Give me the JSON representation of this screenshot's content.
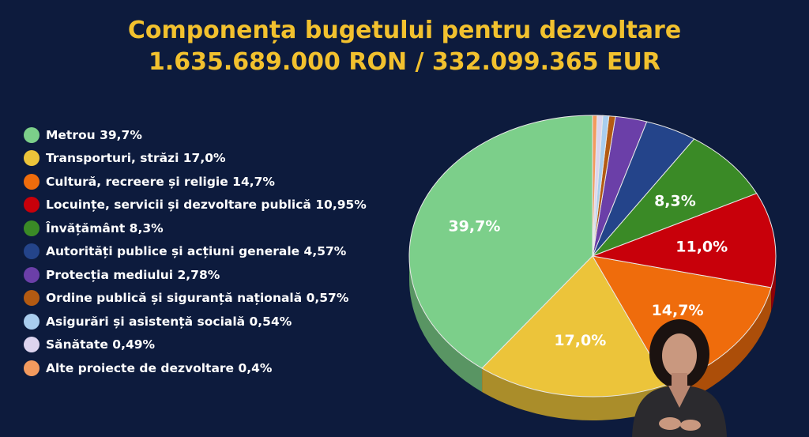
{
  "title": {
    "line1": "Componența bugetului pentru dezvoltare",
    "line2": "1.635.689.000 RON / 332.099.365 EUR"
  },
  "chart_data": {
    "type": "pie",
    "title": "Componența bugetului pentru dezvoltare",
    "subtitle": "1.635.689.000 RON / 332.099.365 EUR",
    "legend_position": "left",
    "slices": [
      {
        "label": "Metrou 39,7%",
        "value": 39.7,
        "color": "#7ccf8a",
        "data_label": "39,7%"
      },
      {
        "label": "Transporturi, străzi 17,0%",
        "value": 17.0,
        "color": "#ecc43a",
        "data_label": "17,0%"
      },
      {
        "label": "Cultură, recreere și religie 14,7%",
        "value": 14.7,
        "color": "#ef6c0c",
        "data_label": "14,7%"
      },
      {
        "label": "Locuințe, servicii și dezvoltare publică 10,95%",
        "value": 10.95,
        "color": "#c8000a",
        "data_label": "11,0%"
      },
      {
        "label": "Învățământ 8,3%",
        "value": 8.3,
        "color": "#3a8a26",
        "data_label": "8,3%"
      },
      {
        "label": "Autorități publice și acțiuni generale 4,57%",
        "value": 4.57,
        "color": "#24448a",
        "data_label": ""
      },
      {
        "label": "Protecția mediului 2,78%",
        "value": 2.78,
        "color": "#6b3fa8",
        "data_label": ""
      },
      {
        "label": "Ordine publică și siguranță națională 0,57%",
        "value": 0.57,
        "color": "#b35a12",
        "data_label": ""
      },
      {
        "label": "Asigurări și asistență socială 0,54%",
        "value": 0.54,
        "color": "#a9cdee",
        "data_label": ""
      },
      {
        "label": "Sănătate 0,49%",
        "value": 0.49,
        "color": "#ddd4ee",
        "data_label": ""
      },
      {
        "label": "Alte proiecte de dezvoltare 0,4%",
        "value": 0.4,
        "color": "#f39a5e",
        "data_label": ""
      }
    ]
  }
}
